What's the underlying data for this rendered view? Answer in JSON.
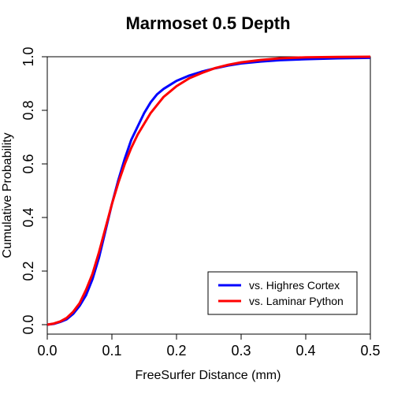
{
  "chart_data": {
    "type": "line",
    "title": "Marmoset 0.5 Depth",
    "xlabel": "FreeSurfer Distance (mm)",
    "ylabel": "Cumulative Probability",
    "xlim": [
      0,
      0.5
    ],
    "ylim": [
      0,
      1.0
    ],
    "x_ticks": [
      "0.0",
      "0.1",
      "0.2",
      "0.3",
      "0.4",
      "0.5"
    ],
    "y_ticks": [
      "0.0",
      "0.2",
      "0.4",
      "0.6",
      "0.8",
      "1.0"
    ],
    "grid": false,
    "legend_position": "bottom-right",
    "series": [
      {
        "name": "vs. Highres Cortex",
        "color": "#0000ff",
        "x": [
          0.0,
          0.01,
          0.02,
          0.03,
          0.04,
          0.05,
          0.06,
          0.07,
          0.08,
          0.09,
          0.1,
          0.11,
          0.12,
          0.13,
          0.14,
          0.15,
          0.16,
          0.17,
          0.18,
          0.19,
          0.2,
          0.22,
          0.24,
          0.26,
          0.28,
          0.3,
          0.33,
          0.36,
          0.4,
          0.45,
          0.5
        ],
        "y": [
          0.0,
          0.003,
          0.01,
          0.02,
          0.04,
          0.07,
          0.11,
          0.17,
          0.25,
          0.35,
          0.45,
          0.54,
          0.62,
          0.69,
          0.74,
          0.79,
          0.83,
          0.86,
          0.88,
          0.895,
          0.91,
          0.93,
          0.945,
          0.957,
          0.967,
          0.975,
          0.982,
          0.987,
          0.991,
          0.994,
          0.996
        ]
      },
      {
        "name": "vs. Laminar Python",
        "color": "#ff0000",
        "x": [
          0.0,
          0.01,
          0.02,
          0.03,
          0.04,
          0.05,
          0.06,
          0.07,
          0.08,
          0.09,
          0.1,
          0.11,
          0.12,
          0.13,
          0.14,
          0.15,
          0.16,
          0.17,
          0.18,
          0.19,
          0.2,
          0.22,
          0.24,
          0.26,
          0.28,
          0.3,
          0.33,
          0.36,
          0.4,
          0.45,
          0.5
        ],
        "y": [
          0.0,
          0.004,
          0.012,
          0.025,
          0.048,
          0.08,
          0.13,
          0.19,
          0.27,
          0.36,
          0.45,
          0.53,
          0.6,
          0.66,
          0.71,
          0.75,
          0.79,
          0.82,
          0.85,
          0.87,
          0.89,
          0.92,
          0.94,
          0.958,
          0.97,
          0.979,
          0.988,
          0.994,
          0.998,
          0.999,
          1.0
        ]
      }
    ]
  }
}
